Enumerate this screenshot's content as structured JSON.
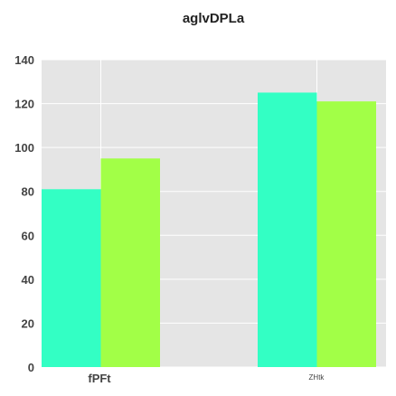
{
  "chart_data": {
    "type": "bar",
    "title": "aglvDPLa",
    "xlabel": "",
    "ylabel": "",
    "categories": [
      "fPFt",
      "ZHtk"
    ],
    "series": [
      {
        "values": [
          81,
          125
        ],
        "color": "#33ffc4"
      },
      {
        "values": [
          95,
          121
        ],
        "color": "#a2ff47"
      }
    ],
    "ylim": [
      0,
      140
    ],
    "yticks": [
      0,
      20,
      40,
      60,
      80,
      100,
      120,
      140
    ],
    "grid": true,
    "background": "#e5e5e5",
    "grid_color": "#ffffff"
  }
}
